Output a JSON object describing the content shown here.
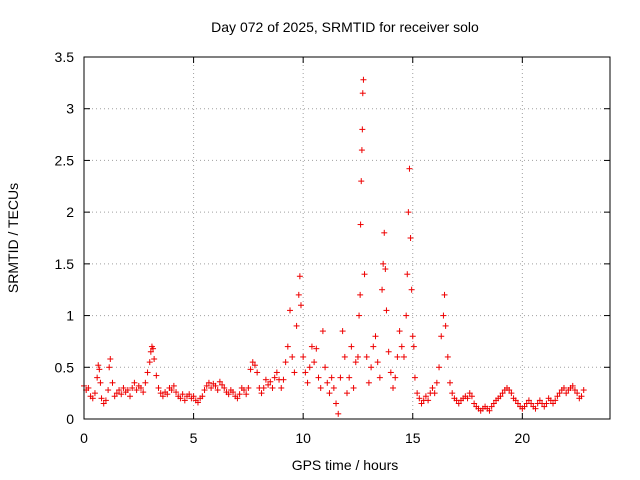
{
  "chart_data": {
    "type": "scatter",
    "title": "Day 072 of 2025, SRMTID for receiver solo",
    "xlabel": "GPS time / hours",
    "ylabel": "SRMTID / TECUs",
    "xlim": [
      0,
      24
    ],
    "ylim": [
      0,
      3.5
    ],
    "xticks": [
      "0",
      "5",
      "10",
      "15",
      "20"
    ],
    "yticks": [
      "0",
      "0.5",
      "1",
      "1.5",
      "2",
      "2.5",
      "3",
      "3.5"
    ],
    "grid": true,
    "marker": "+",
    "color": "#ee0000",
    "series": [
      {
        "name": "SRMTID",
        "points": [
          [
            0.0,
            0.32
          ],
          [
            0.1,
            0.28
          ],
          [
            0.2,
            0.3
          ],
          [
            0.3,
            0.22
          ],
          [
            0.4,
            0.2
          ],
          [
            0.5,
            0.25
          ],
          [
            0.6,
            0.4
          ],
          [
            0.65,
            0.52
          ],
          [
            0.7,
            0.48
          ],
          [
            0.75,
            0.35
          ],
          [
            0.8,
            0.2
          ],
          [
            0.9,
            0.15
          ],
          [
            1.0,
            0.18
          ],
          [
            1.1,
            0.28
          ],
          [
            1.15,
            0.5
          ],
          [
            1.2,
            0.58
          ],
          [
            1.3,
            0.35
          ],
          [
            1.4,
            0.22
          ],
          [
            1.5,
            0.25
          ],
          [
            1.6,
            0.28
          ],
          [
            1.7,
            0.24
          ],
          [
            1.8,
            0.3
          ],
          [
            1.9,
            0.26
          ],
          [
            2.0,
            0.28
          ],
          [
            2.1,
            0.22
          ],
          [
            2.2,
            0.3
          ],
          [
            2.3,
            0.35
          ],
          [
            2.4,
            0.28
          ],
          [
            2.5,
            0.32
          ],
          [
            2.6,
            0.3
          ],
          [
            2.7,
            0.26
          ],
          [
            2.8,
            0.35
          ],
          [
            2.9,
            0.45
          ],
          [
            3.0,
            0.55
          ],
          [
            3.05,
            0.65
          ],
          [
            3.1,
            0.7
          ],
          [
            3.15,
            0.68
          ],
          [
            3.2,
            0.58
          ],
          [
            3.3,
            0.42
          ],
          [
            3.4,
            0.3
          ],
          [
            3.5,
            0.25
          ],
          [
            3.6,
            0.22
          ],
          [
            3.7,
            0.26
          ],
          [
            3.8,
            0.24
          ],
          [
            3.9,
            0.3
          ],
          [
            4.0,
            0.28
          ],
          [
            4.1,
            0.32
          ],
          [
            4.2,
            0.26
          ],
          [
            4.3,
            0.22
          ],
          [
            4.4,
            0.2
          ],
          [
            4.5,
            0.24
          ],
          [
            4.6,
            0.18
          ],
          [
            4.7,
            0.22
          ],
          [
            4.8,
            0.24
          ],
          [
            4.9,
            0.2
          ],
          [
            5.0,
            0.22
          ],
          [
            5.1,
            0.18
          ],
          [
            5.2,
            0.16
          ],
          [
            5.3,
            0.2
          ],
          [
            5.4,
            0.22
          ],
          [
            5.5,
            0.28
          ],
          [
            5.6,
            0.32
          ],
          [
            5.7,
            0.35
          ],
          [
            5.8,
            0.3
          ],
          [
            5.9,
            0.34
          ],
          [
            6.0,
            0.32
          ],
          [
            6.1,
            0.28
          ],
          [
            6.2,
            0.36
          ],
          [
            6.3,
            0.33
          ],
          [
            6.4,
            0.3
          ],
          [
            6.5,
            0.26
          ],
          [
            6.6,
            0.24
          ],
          [
            6.7,
            0.28
          ],
          [
            6.8,
            0.26
          ],
          [
            6.9,
            0.22
          ],
          [
            7.0,
            0.2
          ],
          [
            7.1,
            0.24
          ],
          [
            7.2,
            0.3
          ],
          [
            7.3,
            0.28
          ],
          [
            7.4,
            0.24
          ],
          [
            7.5,
            0.3
          ],
          [
            7.6,
            0.48
          ],
          [
            7.7,
            0.55
          ],
          [
            7.8,
            0.52
          ],
          [
            7.9,
            0.45
          ],
          [
            8.0,
            0.3
          ],
          [
            8.1,
            0.25
          ],
          [
            8.2,
            0.3
          ],
          [
            8.3,
            0.38
          ],
          [
            8.4,
            0.33
          ],
          [
            8.5,
            0.36
          ],
          [
            8.6,
            0.3
          ],
          [
            8.7,
            0.4
          ],
          [
            8.8,
            0.45
          ],
          [
            8.9,
            0.38
          ],
          [
            9.0,
            0.3
          ],
          [
            9.1,
            0.38
          ],
          [
            9.2,
            0.55
          ],
          [
            9.3,
            0.7
          ],
          [
            9.4,
            1.05
          ],
          [
            9.5,
            0.6
          ],
          [
            9.6,
            0.45
          ],
          [
            9.7,
            0.9
          ],
          [
            9.8,
            1.2
          ],
          [
            9.85,
            1.38
          ],
          [
            9.9,
            1.1
          ],
          [
            10.0,
            0.6
          ],
          [
            10.1,
            0.45
          ],
          [
            10.2,
            0.35
          ],
          [
            10.3,
            0.5
          ],
          [
            10.4,
            0.7
          ],
          [
            10.5,
            0.55
          ],
          [
            10.6,
            0.68
          ],
          [
            10.7,
            0.4
          ],
          [
            10.8,
            0.3
          ],
          [
            10.9,
            0.85
          ],
          [
            11.0,
            0.5
          ],
          [
            11.1,
            0.35
          ],
          [
            11.2,
            0.25
          ],
          [
            11.3,
            0.4
          ],
          [
            11.4,
            0.3
          ],
          [
            11.5,
            0.15
          ],
          [
            11.6,
            0.05
          ],
          [
            11.7,
            0.4
          ],
          [
            11.8,
            0.85
          ],
          [
            11.9,
            0.6
          ],
          [
            12.0,
            0.25
          ],
          [
            12.1,
            0.4
          ],
          [
            12.2,
            0.7
          ],
          [
            12.3,
            0.3
          ],
          [
            12.4,
            0.55
          ],
          [
            12.5,
            0.6
          ],
          [
            12.55,
            1.0
          ],
          [
            12.6,
            1.2
          ],
          [
            12.62,
            1.88
          ],
          [
            12.65,
            2.3
          ],
          [
            12.68,
            2.6
          ],
          [
            12.7,
            2.8
          ],
          [
            12.72,
            3.15
          ],
          [
            12.75,
            3.28
          ],
          [
            12.8,
            1.4
          ],
          [
            12.9,
            0.6
          ],
          [
            13.0,
            0.35
          ],
          [
            13.1,
            0.5
          ],
          [
            13.2,
            0.7
          ],
          [
            13.3,
            0.8
          ],
          [
            13.4,
            0.55
          ],
          [
            13.5,
            0.4
          ],
          [
            13.6,
            1.25
          ],
          [
            13.65,
            1.5
          ],
          [
            13.7,
            1.8
          ],
          [
            13.75,
            1.45
          ],
          [
            13.8,
            1.05
          ],
          [
            13.9,
            0.65
          ],
          [
            14.0,
            0.45
          ],
          [
            14.1,
            0.3
          ],
          [
            14.2,
            0.4
          ],
          [
            14.3,
            0.6
          ],
          [
            14.4,
            0.85
          ],
          [
            14.5,
            0.7
          ],
          [
            14.6,
            0.6
          ],
          [
            14.7,
            1.0
          ],
          [
            14.75,
            1.4
          ],
          [
            14.8,
            2.0
          ],
          [
            14.85,
            2.42
          ],
          [
            14.9,
            1.75
          ],
          [
            14.95,
            1.25
          ],
          [
            15.0,
            0.8
          ],
          [
            15.05,
            0.7
          ],
          [
            15.1,
            0.4
          ],
          [
            15.2,
            0.25
          ],
          [
            15.3,
            0.2
          ],
          [
            15.4,
            0.15
          ],
          [
            15.5,
            0.18
          ],
          [
            15.6,
            0.22
          ],
          [
            15.7,
            0.18
          ],
          [
            15.8,
            0.25
          ],
          [
            15.9,
            0.3
          ],
          [
            16.0,
            0.25
          ],
          [
            16.1,
            0.35
          ],
          [
            16.2,
            0.5
          ],
          [
            16.3,
            0.8
          ],
          [
            16.4,
            1.0
          ],
          [
            16.45,
            1.2
          ],
          [
            16.5,
            0.9
          ],
          [
            16.6,
            0.6
          ],
          [
            16.7,
            0.35
          ],
          [
            16.8,
            0.25
          ],
          [
            16.9,
            0.2
          ],
          [
            17.0,
            0.18
          ],
          [
            17.1,
            0.15
          ],
          [
            17.2,
            0.18
          ],
          [
            17.3,
            0.2
          ],
          [
            17.4,
            0.22
          ],
          [
            17.5,
            0.2
          ],
          [
            17.6,
            0.25
          ],
          [
            17.7,
            0.22
          ],
          [
            17.8,
            0.15
          ],
          [
            17.9,
            0.12
          ],
          [
            18.0,
            0.1
          ],
          [
            18.1,
            0.08
          ],
          [
            18.2,
            0.1
          ],
          [
            18.3,
            0.12
          ],
          [
            18.4,
            0.1
          ],
          [
            18.5,
            0.08
          ],
          [
            18.6,
            0.12
          ],
          [
            18.7,
            0.15
          ],
          [
            18.8,
            0.18
          ],
          [
            18.9,
            0.2
          ],
          [
            19.0,
            0.22
          ],
          [
            19.1,
            0.25
          ],
          [
            19.2,
            0.28
          ],
          [
            19.3,
            0.3
          ],
          [
            19.4,
            0.28
          ],
          [
            19.5,
            0.25
          ],
          [
            19.6,
            0.2
          ],
          [
            19.7,
            0.18
          ],
          [
            19.8,
            0.15
          ],
          [
            19.9,
            0.12
          ],
          [
            20.0,
            0.1
          ],
          [
            20.1,
            0.12
          ],
          [
            20.2,
            0.15
          ],
          [
            20.3,
            0.18
          ],
          [
            20.4,
            0.15
          ],
          [
            20.5,
            0.12
          ],
          [
            20.6,
            0.1
          ],
          [
            20.7,
            0.15
          ],
          [
            20.8,
            0.18
          ],
          [
            20.9,
            0.15
          ],
          [
            21.0,
            0.12
          ],
          [
            21.1,
            0.15
          ],
          [
            21.2,
            0.2
          ],
          [
            21.3,
            0.18
          ],
          [
            21.4,
            0.15
          ],
          [
            21.5,
            0.18
          ],
          [
            21.6,
            0.22
          ],
          [
            21.7,
            0.25
          ],
          [
            21.8,
            0.28
          ],
          [
            21.9,
            0.3
          ],
          [
            22.0,
            0.25
          ],
          [
            22.1,
            0.28
          ],
          [
            22.2,
            0.3
          ],
          [
            22.3,
            0.32
          ],
          [
            22.4,
            0.28
          ],
          [
            22.5,
            0.25
          ],
          [
            22.6,
            0.2
          ],
          [
            22.7,
            0.22
          ],
          [
            22.8,
            0.28
          ]
        ]
      }
    ]
  }
}
